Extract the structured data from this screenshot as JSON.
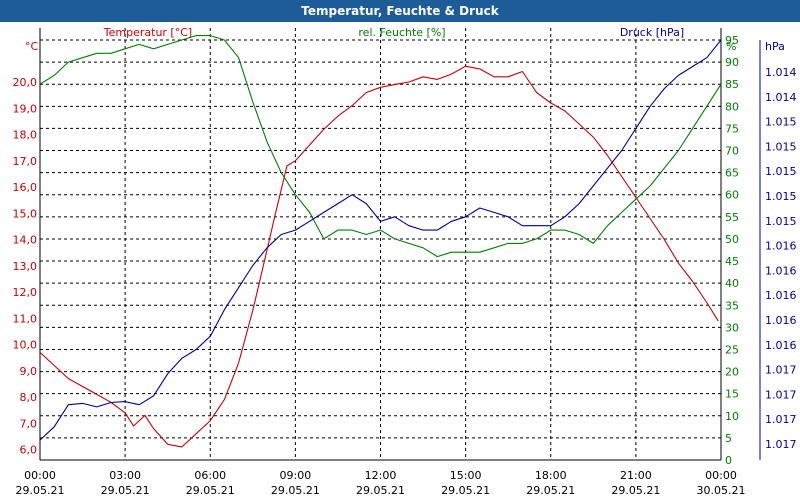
{
  "window": {
    "title": "Temperatur, Feuchte & Druck"
  },
  "colors": {
    "temperature": "#cc0000",
    "humidity": "#008000",
    "pressure": "#00009a",
    "titlebar": "#1e5c99",
    "grid": "#000000"
  },
  "chart_data": {
    "type": "line",
    "title": "Temperatur, Feuchte & Druck",
    "xlabel": "",
    "x_ticks": [
      {
        "time": "00:00",
        "date": "29.05.21"
      },
      {
        "time": "03:00",
        "date": "29.05.21"
      },
      {
        "time": "06:00",
        "date": "29.05.21"
      },
      {
        "time": "09:00",
        "date": "29.05.21"
      },
      {
        "time": "12:00",
        "date": "29.05.21"
      },
      {
        "time": "15:00",
        "date": "29.05.21"
      },
      {
        "time": "18:00",
        "date": "29.05.21"
      },
      {
        "time": "21:00",
        "date": "29.05.21"
      },
      {
        "time": "00:00",
        "date": "30.05.21"
      }
    ],
    "xlim": [
      0,
      24
    ],
    "axes": {
      "temperature": {
        "label": "Temperatur [°C]",
        "unit": "°C",
        "ylim": [
          5.6,
          21.6
        ],
        "ticks": [
          "6,0",
          "7,0",
          "8,0",
          "9,0",
          "10,0",
          "11,0",
          "12,0",
          "13,0",
          "14,0",
          "15,0",
          "16,0",
          "17,0",
          "18,0",
          "19,0",
          "20,0"
        ]
      },
      "humidity": {
        "label": "rel. Feuchte [%]",
        "unit": "%",
        "ylim": [
          0,
          95
        ],
        "ticks": [
          "0",
          "5",
          "10",
          "15",
          "20",
          "25",
          "30",
          "35",
          "40",
          "45",
          "50",
          "55",
          "60",
          "65",
          "70",
          "75",
          "80",
          "85",
          "90",
          "95"
        ]
      },
      "pressure": {
        "label": "Druck [hPa]",
        "unit": "hPa",
        "ticks": [
          "1.014",
          "1.014",
          "1.015",
          "1.015",
          "1.015",
          "1.015",
          "1.015",
          "1.016",
          "1.016",
          "1.016",
          "1.016",
          "1.016",
          "1.017",
          "1.017",
          "1.017",
          "1.017"
        ]
      }
    },
    "series": [
      {
        "name": "Temperatur [°C]",
        "axis": "temperature",
        "x": [
          0,
          0.5,
          1,
          1.5,
          2,
          2.5,
          3,
          3.3,
          3.7,
          4,
          4.5,
          5,
          5.5,
          6,
          6.5,
          7,
          7.5,
          8,
          8.3,
          8.7,
          9,
          9.5,
          10,
          10.5,
          11,
          11.5,
          12,
          12.5,
          13,
          13.5,
          14,
          14.5,
          15,
          15.5,
          16,
          16.5,
          17,
          17.5,
          18,
          18.5,
          19,
          19.5,
          20,
          20.5,
          21,
          21.5,
          22,
          22.5,
          23,
          23.5,
          23.9
        ],
        "values": [
          9.7,
          9.2,
          8.7,
          8.4,
          8.1,
          7.8,
          7.4,
          6.9,
          7.3,
          6.8,
          6.2,
          6.1,
          6.6,
          7.1,
          7.9,
          9.3,
          11.3,
          13.6,
          15.0,
          16.8,
          17.0,
          17.6,
          18.2,
          18.7,
          19.1,
          19.6,
          19.8,
          19.9,
          20.0,
          20.2,
          20.1,
          20.3,
          20.6,
          20.5,
          20.2,
          20.2,
          20.4,
          19.6,
          19.2,
          18.9,
          18.4,
          17.9,
          17.2,
          16.4,
          15.6,
          14.8,
          14.0,
          13.1,
          12.4,
          11.6,
          10.9
        ]
      },
      {
        "name": "rel. Feuchte [%]",
        "axis": "humidity",
        "x": [
          0,
          0.5,
          1,
          1.5,
          2,
          2.5,
          3,
          3.5,
          4,
          4.5,
          5,
          5.5,
          6,
          6.5,
          7,
          7.5,
          8,
          8.5,
          9,
          9.5,
          10,
          10.5,
          11,
          11.5,
          12,
          12.5,
          13,
          13.5,
          14,
          14.5,
          15,
          15.5,
          16,
          16.5,
          17,
          17.5,
          18,
          18.5,
          19,
          19.5,
          20,
          20.5,
          21,
          21.5,
          22,
          22.5,
          23,
          23.5,
          24
        ],
        "values": [
          85,
          87,
          90,
          91,
          92,
          92,
          93,
          94,
          93,
          94,
          95,
          96,
          96,
          95,
          91,
          81,
          72,
          65,
          60,
          56,
          50,
          52,
          52,
          51,
          52,
          50,
          49,
          48,
          46,
          47,
          47,
          47,
          48,
          49,
          49,
          50,
          52,
          52,
          51,
          49,
          53,
          56,
          59,
          62,
          66,
          70,
          75,
          80,
          85
        ]
      },
      {
        "name": "Druck [hPa]",
        "axis": "pressure",
        "x": [
          0,
          0.5,
          1,
          1.5,
          2,
          2.5,
          3,
          3.5,
          4,
          4.5,
          5,
          5.5,
          6,
          6.5,
          7,
          7.5,
          8,
          8.5,
          9,
          9.5,
          10,
          10.5,
          11,
          11.5,
          12,
          12.5,
          13,
          13.5,
          14,
          14.5,
          15,
          15.5,
          16,
          16.5,
          17,
          17.5,
          18,
          18.5,
          19,
          19.5,
          20,
          20.5,
          21,
          21.5,
          22,
          22.5,
          23,
          23.5,
          24
        ],
        "values": [
          4.5,
          7.5,
          12.5,
          12.8,
          12.0,
          13.0,
          13.2,
          12.5,
          14.5,
          19.5,
          23,
          25,
          28,
          34,
          39,
          44,
          48,
          51,
          52,
          54,
          56,
          58,
          60,
          58,
          54,
          55,
          53,
          52,
          52,
          54,
          55,
          57,
          56,
          55,
          53,
          53,
          53,
          55,
          58,
          62,
          66,
          70,
          75,
          80,
          84,
          87,
          89,
          91,
          95
        ]
      }
    ]
  }
}
